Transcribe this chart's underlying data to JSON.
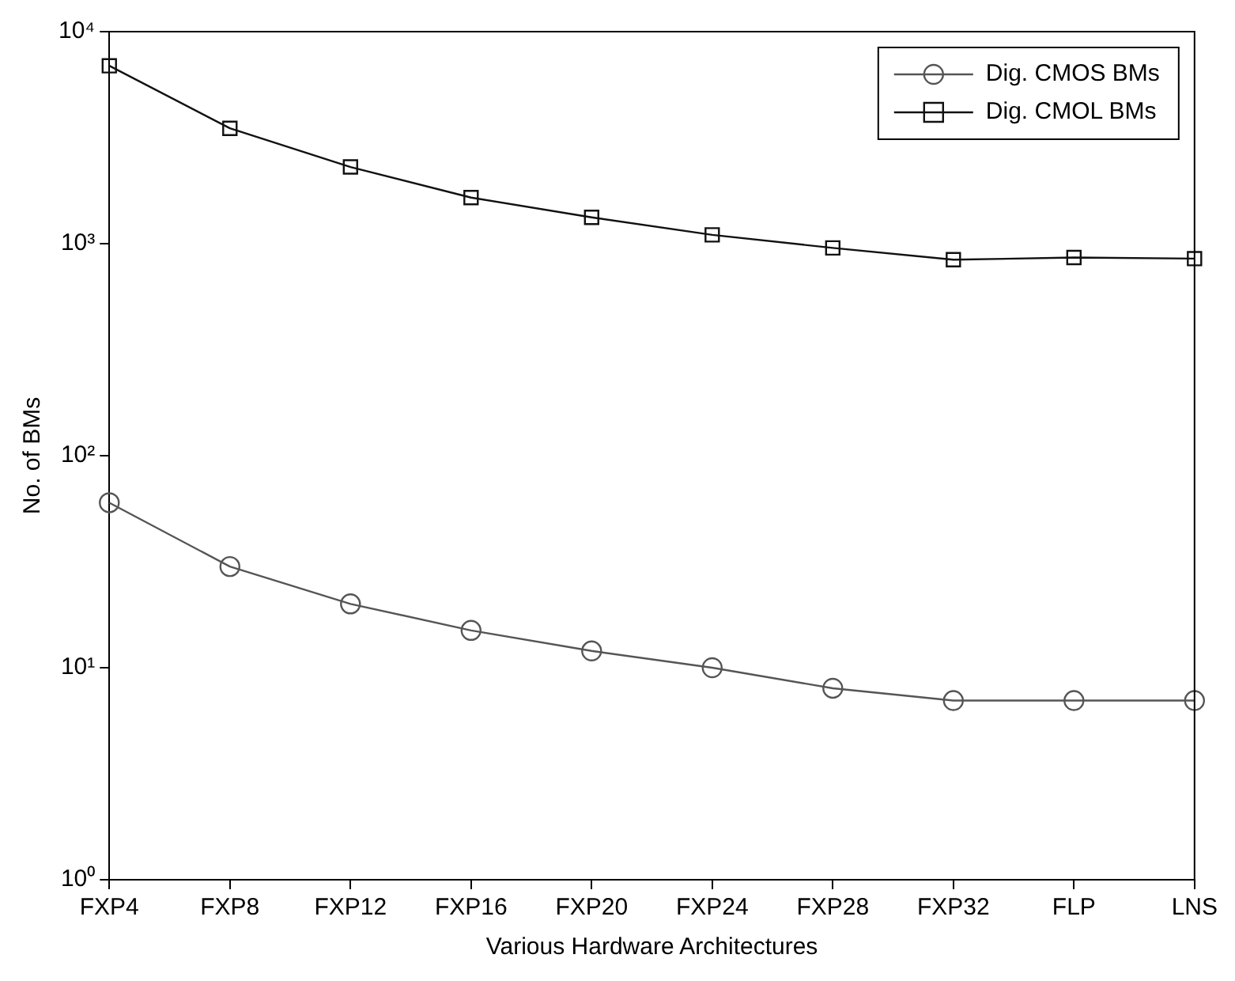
{
  "chart_data": {
    "type": "line",
    "xlabel": "Various Hardware Architectures",
    "ylabel": "No. of BMs",
    "categories": [
      "FXP4",
      "FXP8",
      "FXP12",
      "FXP16",
      "FXP20",
      "FXP24",
      "FXP28",
      "FXP32",
      "FLP",
      "LNS"
    ],
    "series": [
      {
        "name": "Dig. CMOS BMs",
        "color": "#555555",
        "marker": "circle",
        "values": [
          60,
          30,
          20,
          15,
          12,
          10,
          8,
          7,
          7,
          7
        ]
      },
      {
        "name": "Dig. CMOL BMs",
        "color": "#111111",
        "marker": "square",
        "values": [
          6900,
          3500,
          2300,
          1650,
          1330,
          1100,
          955,
          840,
          860,
          850
        ]
      }
    ],
    "log": "y",
    "ylim": [
      1,
      10000
    ],
    "yticks": [
      {
        "value": 1,
        "label": "10⁰"
      },
      {
        "value": 10,
        "label": "10¹"
      },
      {
        "value": 100,
        "label": "10²"
      },
      {
        "value": 1000,
        "label": "10³"
      },
      {
        "value": 10000,
        "label": "10⁴"
      }
    ],
    "grid": false,
    "legend": "top right",
    "line_style": "solid"
  }
}
